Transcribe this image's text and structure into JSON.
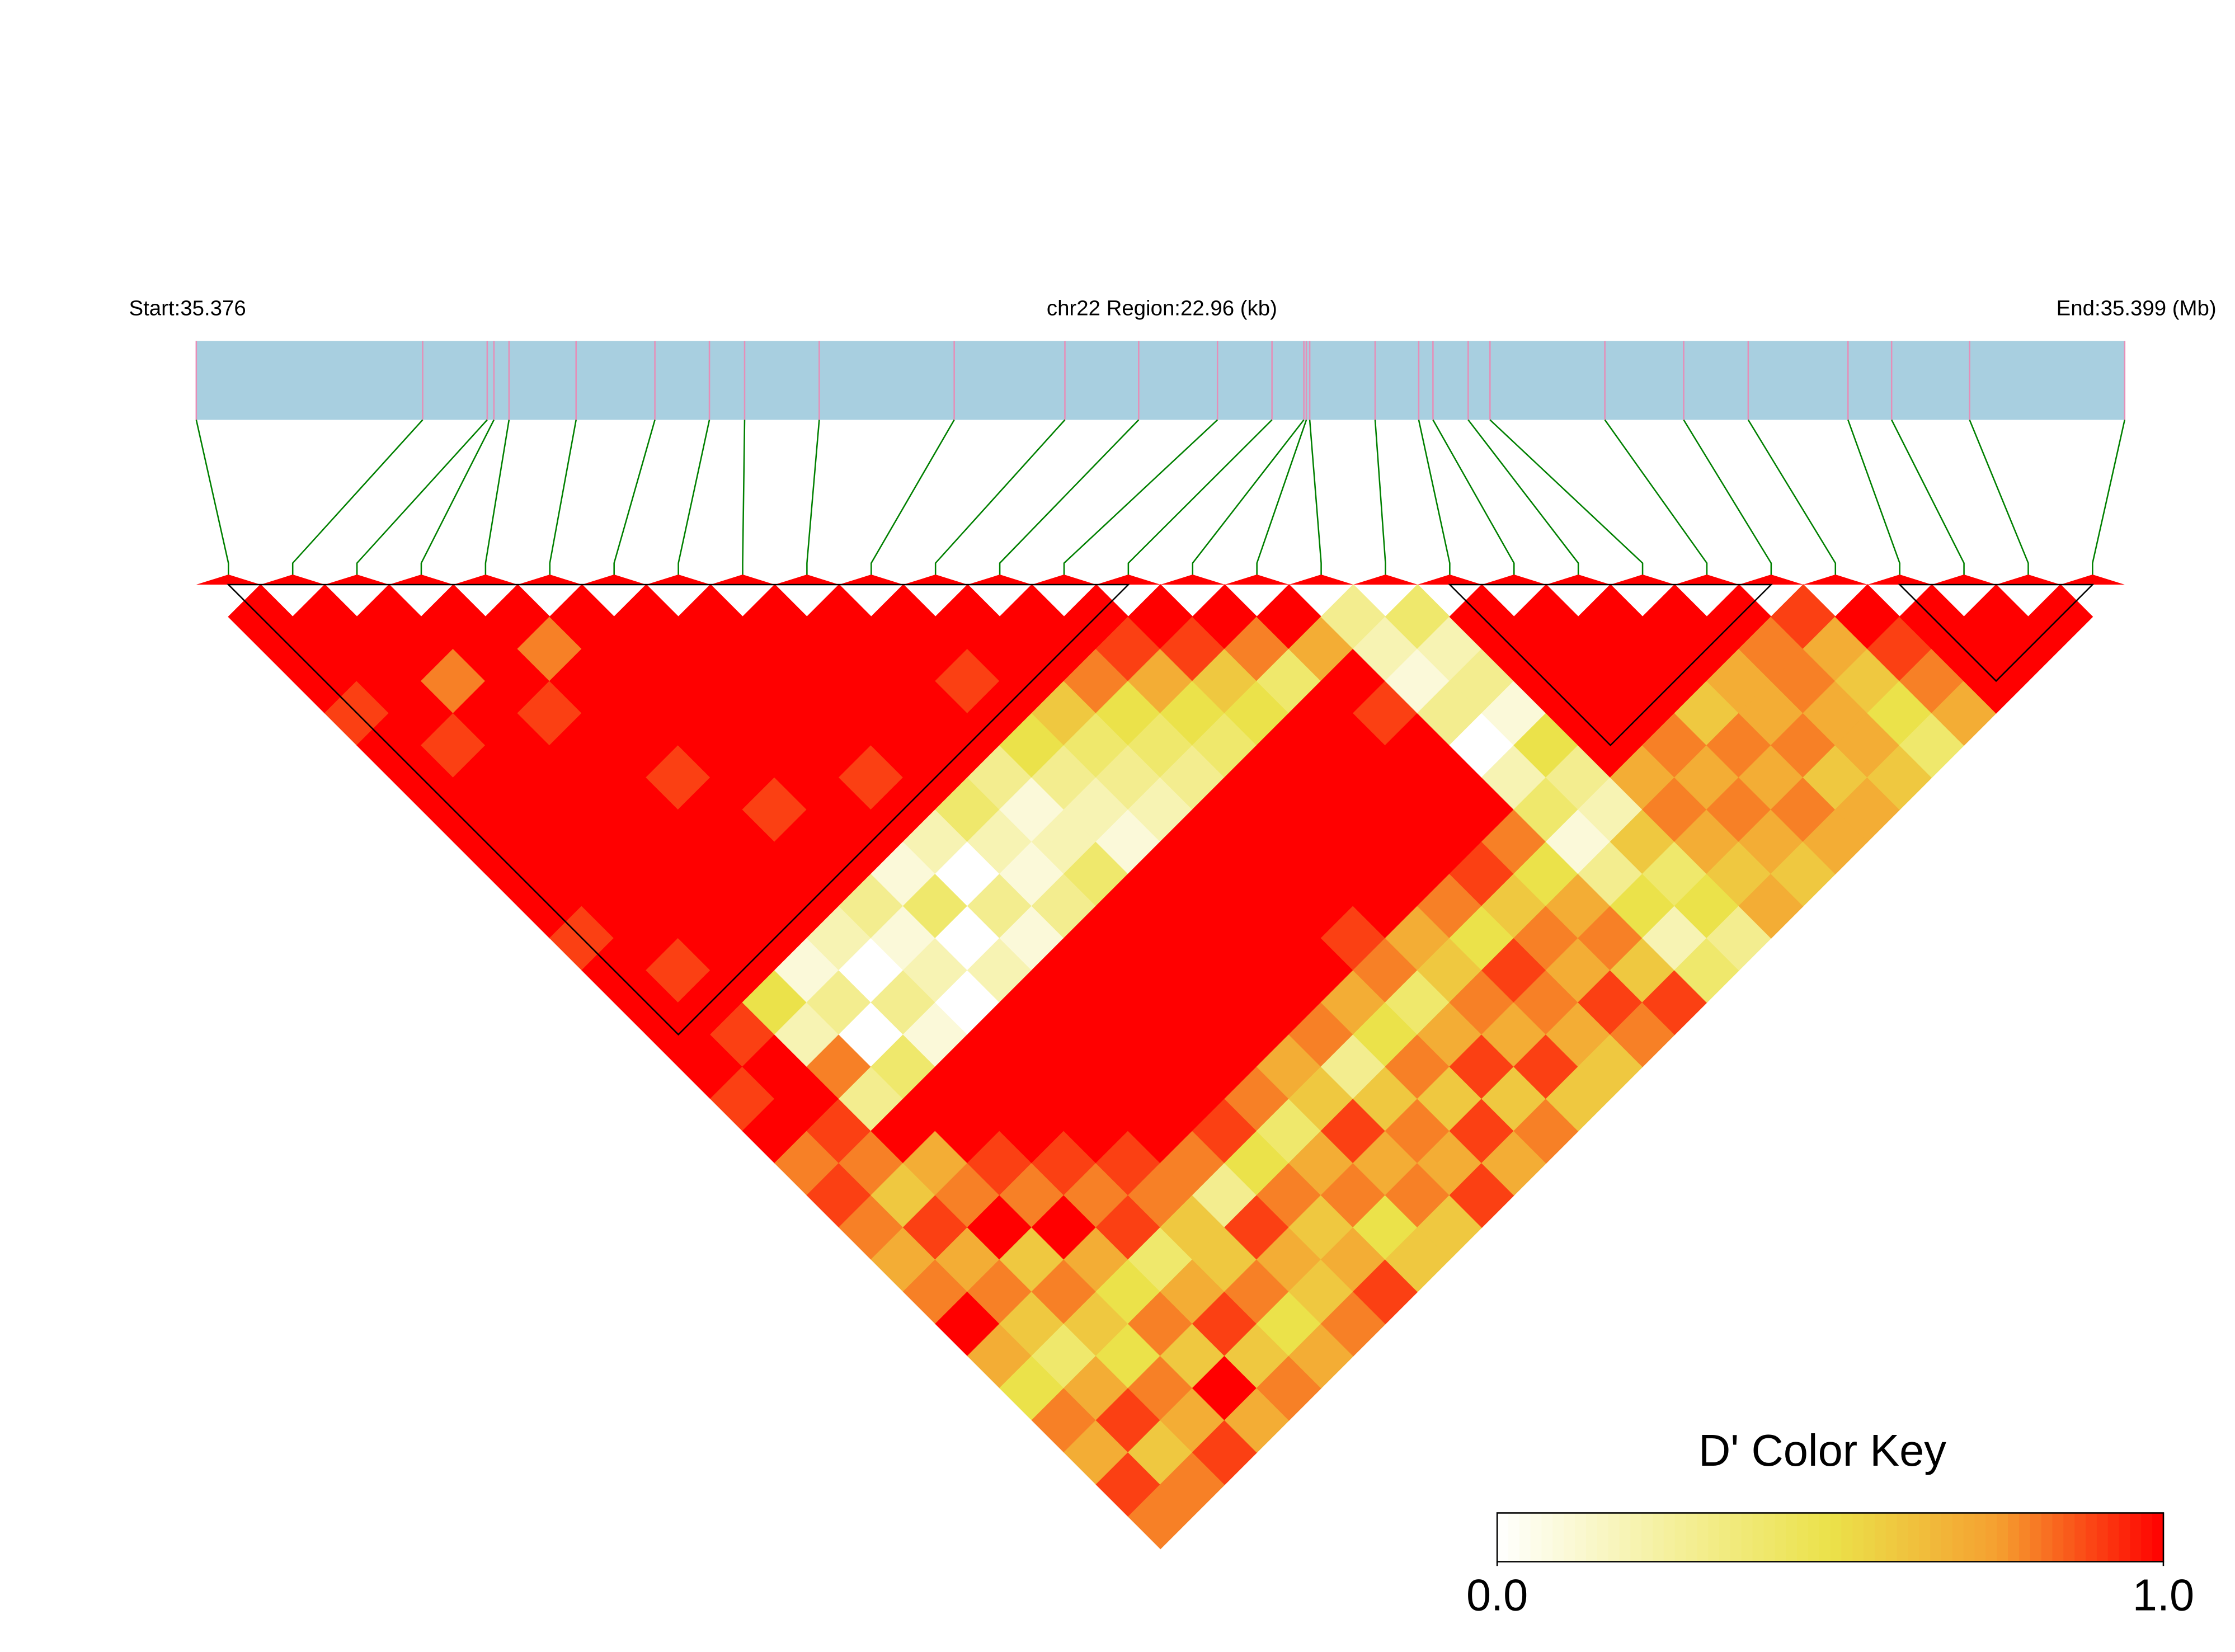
{
  "chart_data": {
    "type": "ld_heatmap",
    "start_label": "Start:35.376",
    "region_label": "chr22 Region:22.96 (kb)",
    "end_label": "End:35.399 (Mb)",
    "xlim": [
      35.376,
      35.399
    ],
    "positions": [
      35.376,
      35.3787,
      35.37947,
      35.37955,
      35.37973,
      35.38053,
      35.38147,
      35.38212,
      35.38254,
      35.38343,
      35.38504,
      35.38636,
      35.38724,
      35.38818,
      35.38883,
      35.38921,
      35.38924,
      35.38928,
      35.39006,
      35.39058,
      35.39075,
      35.39117,
      35.39143,
      35.3928,
      35.39374,
      35.39451,
      35.3957,
      35.39622,
      35.39715,
      35.399
    ],
    "dprime": [
      [
        1,
        1,
        1,
        0.9,
        1,
        1,
        1,
        1,
        1,
        1,
        0.9,
        1,
        1,
        1,
        1,
        0.9,
        1,
        0.8,
        0.9,
        0.8,
        0.7,
        0.8,
        1,
        0.7,
        0.5,
        0.8,
        0.7,
        0.9,
        0.8
      ],
      [
        1,
        1,
        1,
        1,
        0.9,
        1,
        1,
        1,
        1,
        1,
        1,
        0.9,
        1,
        0.9,
        1,
        1,
        0.9,
        0.8,
        0.6,
        0.9,
        0.7,
        0.8,
        0.6,
        0.4,
        0.7,
        0.9,
        0.6,
        0.8
      ],
      [
        1,
        1,
        0.8,
        1,
        1,
        1,
        1,
        1,
        1,
        1,
        1,
        1,
        0.5,
        0.2,
        0.8,
        0.3,
        1,
        0.7,
        0.8,
        1,
        0.6,
        0.8,
        0.6,
        0.5,
        0.8,
        0.7,
        0.9
      ],
      [
        1,
        1,
        1,
        0.9,
        1,
        1,
        1,
        1,
        1,
        1,
        1,
        0.1,
        0.3,
        0,
        0.4,
        1,
        1,
        0.9,
        0.8,
        1,
        0.7,
        0.5,
        0.8,
        0.6,
        1,
        0.7
      ],
      [
        1,
        0.8,
        1,
        1,
        1,
        0.9,
        1,
        1,
        1,
        1,
        0.2,
        0,
        0.3,
        0.1,
        1,
        1,
        1,
        0.9,
        0.8,
        0.9,
        0.4,
        0.7,
        0.9,
        0.6,
        0.8
      ],
      [
        1,
        1,
        1,
        1,
        1,
        1,
        0.9,
        1,
        1,
        0.3,
        0.1,
        0.2,
        0,
        1,
        1,
        1,
        1,
        0.9,
        0.8,
        0.6,
        0.6,
        0.8,
        0.5,
        0.7
      ],
      [
        1,
        1,
        1,
        1,
        1,
        1,
        1,
        1,
        0.1,
        0.4,
        0,
        0.2,
        1,
        1,
        1,
        1,
        1,
        0.8,
        0.3,
        0.9,
        0.7,
        0.6,
        0.8
      ],
      [
        1,
        1,
        1,
        1,
        1,
        0.9,
        1,
        0.2,
        0,
        0.3,
        0.1,
        1,
        1,
        1,
        1,
        1,
        0.9,
        0.5,
        0.8,
        0.6,
        0.7,
        0.9
      ],
      [
        1,
        1,
        1,
        1,
        1,
        1,
        0.4,
        0.2,
        0.1,
        0.3,
        1,
        1,
        1,
        1,
        1,
        0.8,
        0.4,
        0.7,
        0.8,
        0.5,
        0.6
      ],
      [
        1,
        1,
        1,
        1,
        1,
        0.3,
        0.1,
        0.2,
        0.4,
        1,
        1,
        1,
        1,
        1,
        0.7,
        0.6,
        0.9,
        0.7,
        0.8,
        0.6
      ],
      [
        1,
        1,
        0.9,
        1,
        0.5,
        0.3,
        0.2,
        0.1,
        1,
        1,
        1,
        1,
        1,
        0.8,
        0.3,
        0.6,
        0.8,
        0.7,
        0.9
      ],
      [
        1,
        1,
        1,
        0.6,
        0.4,
        0.3,
        0.2,
        1,
        1,
        1,
        1,
        1,
        0.7,
        0.5,
        0.8,
        0.6,
        0.9,
        0.7
      ],
      [
        1,
        1,
        0.8,
        0.5,
        0.4,
        0.3,
        1,
        1,
        1,
        1,
        0.9,
        0.8,
        0.4,
        0.7,
        0.9,
        0.6,
        0.8
      ],
      [
        1,
        0.9,
        0.7,
        0.5,
        0.4,
        1,
        1,
        1,
        1,
        1,
        0.7,
        0.6,
        0.8,
        0.7,
        0.9,
        0.6
      ],
      [
        1,
        0.9,
        0.6,
        0.5,
        1,
        1,
        1,
        1,
        1,
        0.8,
        0.5,
        0.9,
        0.8,
        0.7,
        0.6
      ],
      [
        1,
        0.8,
        0.4,
        1,
        1,
        1,
        1,
        1,
        0.9,
        0.6,
        0.8,
        0.7,
        0.9,
        0.8
      ],
      [
        1,
        0.7,
        1,
        0.9,
        1,
        1,
        1,
        0.8,
        0.5,
        0.7,
        0.8,
        0.6,
        0.9
      ],
      [
        0.3,
        0.2,
        0.1,
        0.3,
        0,
        0.2,
        0.4,
        0.1,
        0.3,
        0.5,
        0.2,
        0.4
      ],
      [
        0.4,
        0.2,
        0.3,
        0.1,
        0.5,
        0.3,
        0.2,
        0.6,
        0.4,
        0.5,
        0.3
      ],
      [
        1,
        1,
        1,
        1,
        1,
        0.7,
        0.8,
        0.7,
        0.6,
        0.7
      ],
      [
        1,
        1,
        1,
        1,
        0.8,
        0.7,
        0.8,
        0.7,
        0.6
      ],
      [
        1,
        1,
        1,
        0.6,
        0.8,
        0.7,
        0.8,
        0.7
      ],
      [
        1,
        1,
        0.7,
        0.7,
        0.8,
        0.6,
        0.7
      ],
      [
        1,
        0.8,
        0.8,
        0.7,
        0.7,
        0.6
      ],
      [
        0.9,
        0.7,
        0.6,
        0.5,
        0.4
      ],
      [
        1,
        0.9,
        0.8,
        0.7
      ],
      [
        1,
        1,
        1
      ],
      [
        1,
        1
      ],
      [
        1
      ]
    ],
    "blocks": [
      [
        0,
        14
      ],
      [
        19,
        24
      ],
      [
        26,
        29
      ]
    ],
    "bar_color": "#a8cfe0",
    "marker_color": "#e58fb8",
    "connector_color": "#008000",
    "color_key": {
      "title": "D' Color Key",
      "lim": [
        0,
        1
      ],
      "ticks": [
        {
          "value": 0,
          "label": "0.0"
        },
        {
          "value": 1,
          "label": "1.0"
        }
      ],
      "colors": [
        "#ffffff",
        "#f5f0a0",
        "#ebe24a",
        "#f5a030",
        "#ff0000"
      ]
    }
  }
}
